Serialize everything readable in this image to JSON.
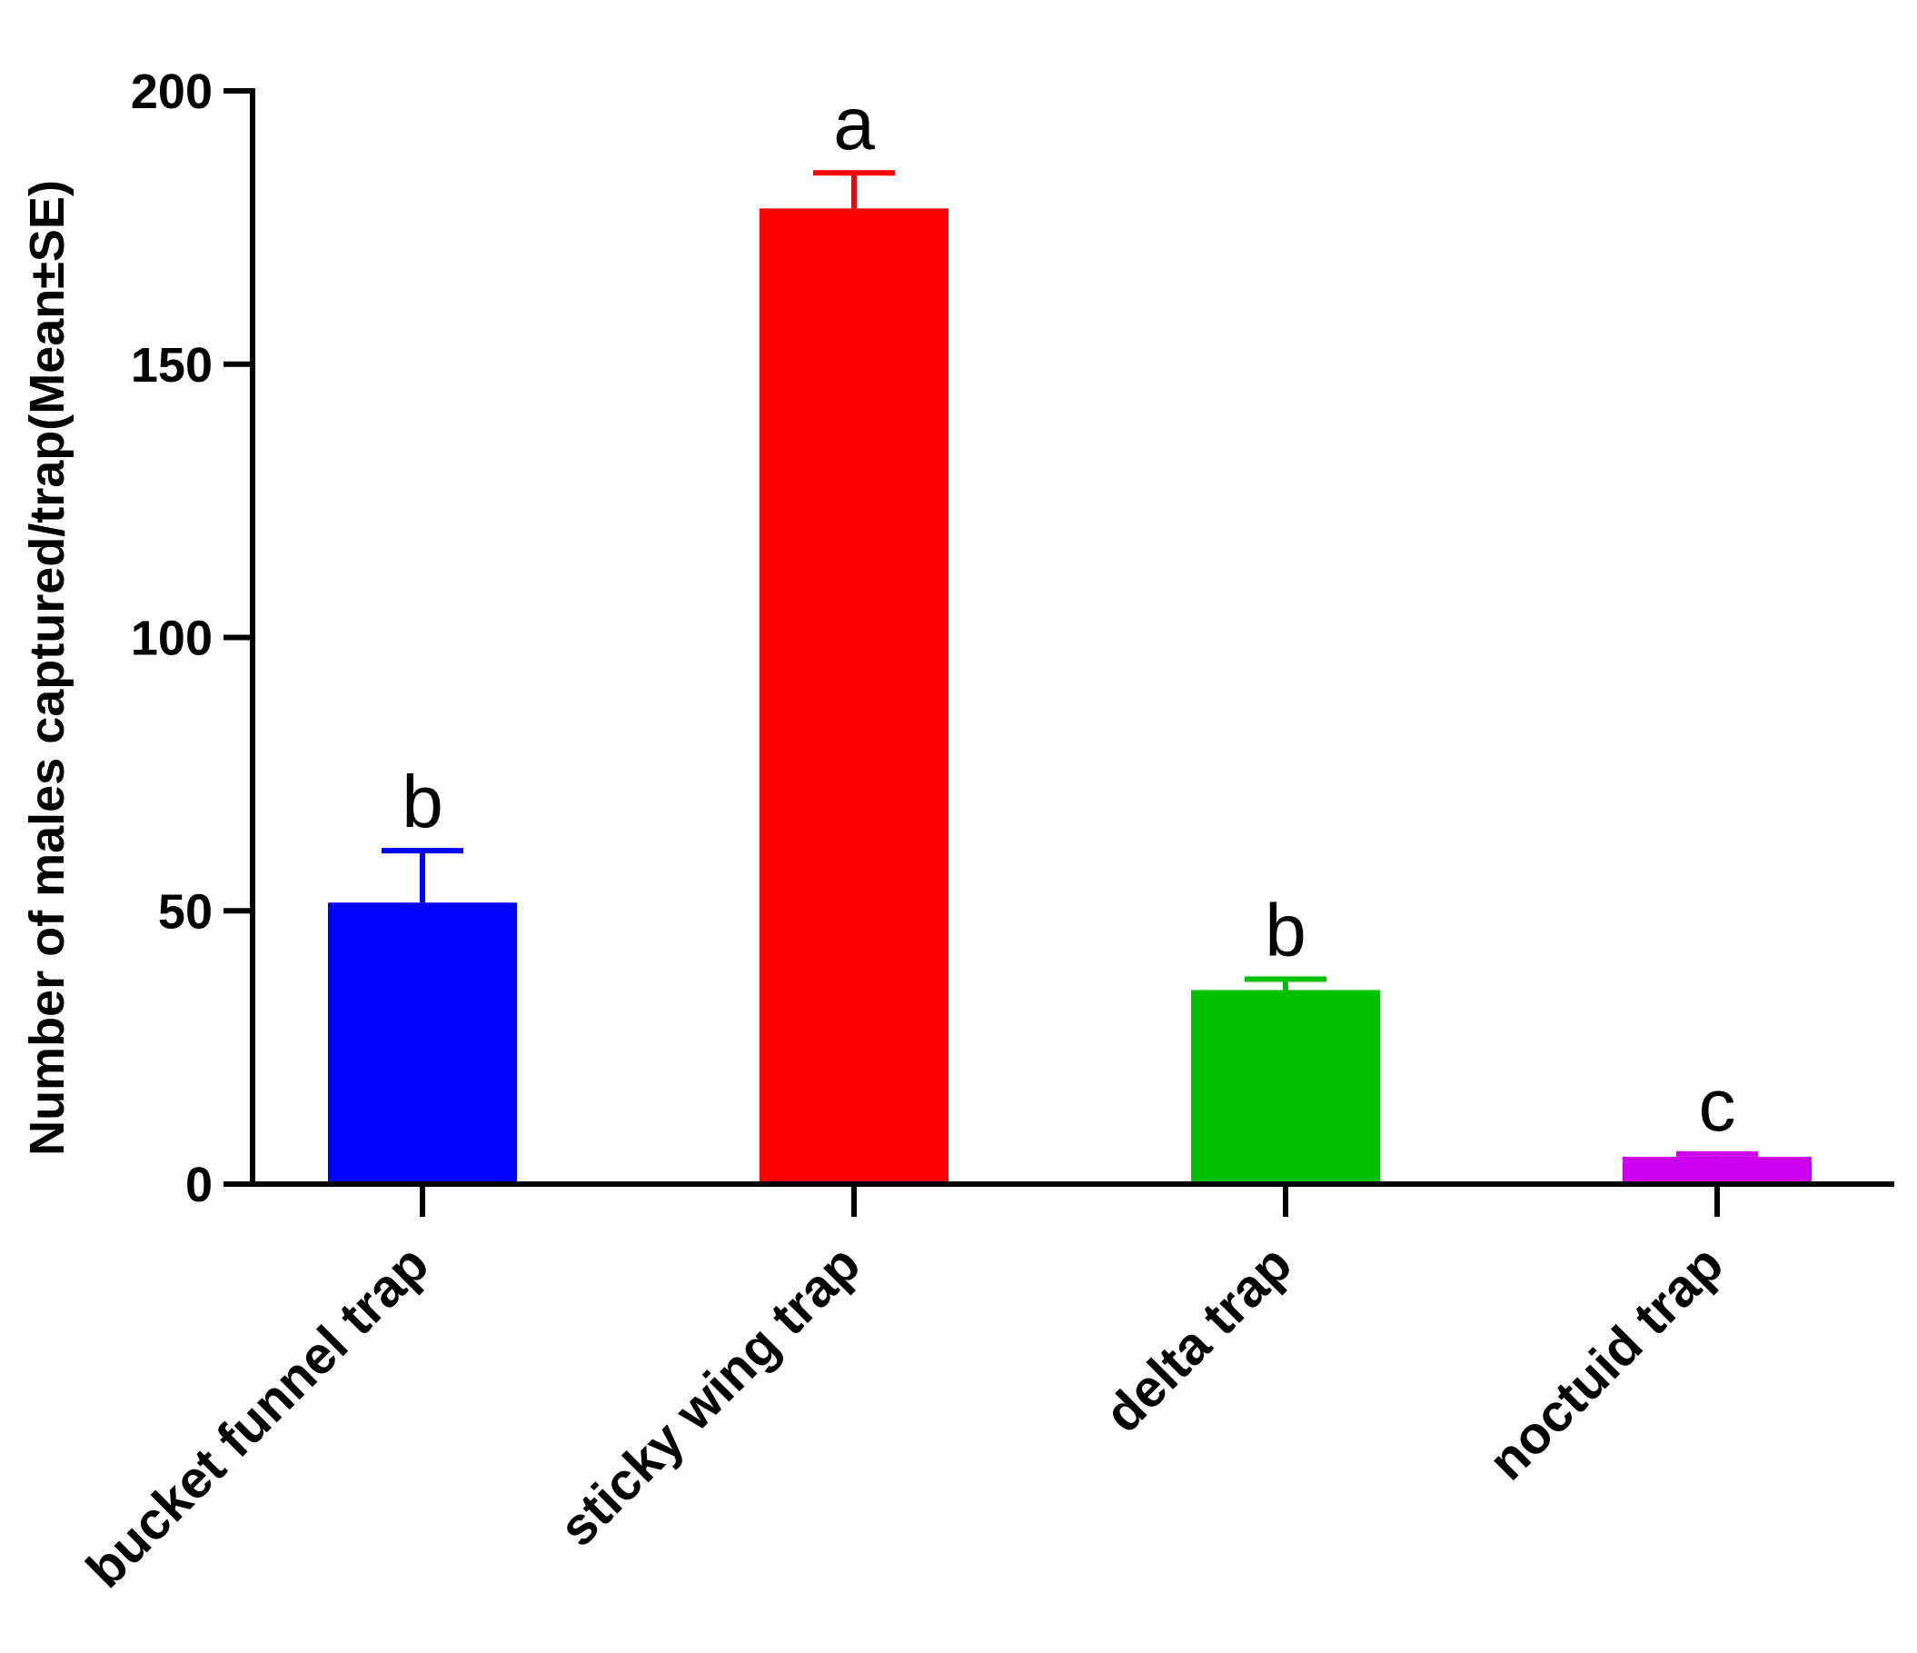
{
  "chart_data": {
    "type": "bar",
    "title": "",
    "xlabel": "",
    "ylabel": "Number of males captured/trap(Mean±SE)",
    "ylim": [
      0,
      200
    ],
    "yticks": [
      0,
      50,
      100,
      150,
      200
    ],
    "grid": false,
    "categories": [
      "bucket funnel trap",
      "sticky wing trap",
      "delta trap",
      "noctuid trap"
    ],
    "values": [
      51.5,
      178.5,
      35.5,
      5
    ],
    "errors": [
      9.5,
      6.5,
      2,
      0.5
    ],
    "significance": [
      "b",
      "a",
      "b",
      "c"
    ],
    "colors": [
      "#0000ff",
      "#ff0000",
      "#00c000",
      "#cc00ee"
    ]
  }
}
